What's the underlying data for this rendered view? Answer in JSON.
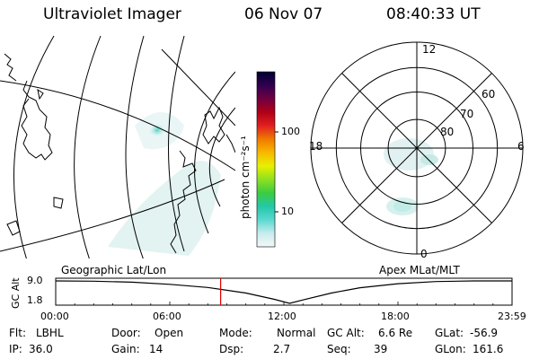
{
  "header": {
    "instrument": "Ultraviolet Imager",
    "date": "06 Nov 07",
    "time": "08:40:33 UT"
  },
  "colorbar": {
    "unit_label": "photon cm⁻²s⁻¹",
    "ticks": [
      "100",
      "10"
    ],
    "stops": [
      "#f4f8f8",
      "#c8ecec",
      "#5ad8d0",
      "#22c8a8",
      "#3ccc40",
      "#8ee020",
      "#e8f000",
      "#f8b800",
      "#f07a00",
      "#e02020",
      "#b00018",
      "#700040",
      "#300050",
      "#000030"
    ]
  },
  "geo_panel": {
    "label": "Geographic Lat/Lon"
  },
  "polar_panel": {
    "label": "Apex MLat/MLT",
    "mlt_labels": {
      "top": "12",
      "left": "18",
      "right": "6",
      "bottom": "0"
    },
    "lat_labels": [
      "60",
      "70",
      "80"
    ]
  },
  "timeline": {
    "ylabel": "GC Alt",
    "y_ticks": [
      "9.0",
      "1.8"
    ],
    "x_ticks": [
      "00:00",
      "06:00",
      "12:00",
      "18:00",
      "23:59"
    ],
    "chart_data": {
      "type": "line",
      "x_hours": [
        0,
        2,
        4,
        6,
        8,
        10,
        11.5,
        12.3,
        13,
        14.5,
        16,
        18,
        20,
        22,
        23.98
      ],
      "y_re": [
        9.0,
        8.9,
        8.6,
        7.9,
        6.9,
        5.1,
        3.1,
        1.8,
        2.9,
        5.1,
        6.8,
        8.1,
        8.8,
        9.0,
        9.0
      ],
      "ylim": [
        1.8,
        9.0
      ],
      "xlim": [
        0,
        24
      ],
      "current_hour": 8.675
    }
  },
  "footer": {
    "row1": [
      {
        "k": "Flt:",
        "v": "LBHL"
      },
      {
        "k": "Door:",
        "v": "Open"
      },
      {
        "k": "Mode:",
        "v": "Normal"
      },
      {
        "k": "GC Alt:",
        "v": "6.6 Re"
      },
      {
        "k": "GLat:",
        "v": "-56.9"
      }
    ],
    "row2": [
      {
        "k": "IP:",
        "v": "36.0"
      },
      {
        "k": "Gain:",
        "v": "14"
      },
      {
        "k": "Dsp:",
        "v": "2.7"
      },
      {
        "k": "Seq:",
        "v": "39"
      },
      {
        "k": "GLon:",
        "v": "161.6"
      }
    ]
  }
}
